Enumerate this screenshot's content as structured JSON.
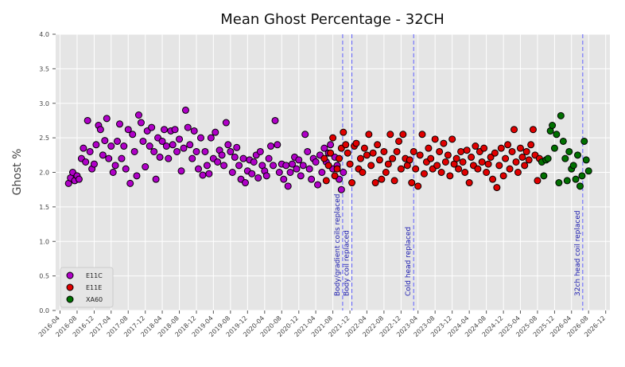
{
  "chart_data": {
    "type": "scatter",
    "title": "Mean Ghost Percentage - 32CH",
    "ylabel": "Ghost %",
    "xlabel": "",
    "ylim": [
      0,
      4
    ],
    "xlim": [
      "2016-03-01",
      "2026-12-31"
    ],
    "grid": true,
    "legend_position": "bottom-left",
    "y_ticks": [
      "0.0",
      "0.5",
      "1.0",
      "1.5",
      "2.0",
      "2.5",
      "3.0",
      "3.5",
      "4.0"
    ],
    "x_ticks": [
      "2016-04",
      "2016-08",
      "2016-12",
      "2017-04",
      "2017-08",
      "2017-12",
      "2018-04",
      "2018-08",
      "2018-12",
      "2019-04",
      "2019-08",
      "2019-12",
      "2020-04",
      "2020-08",
      "2020-12",
      "2021-04",
      "2021-08",
      "2021-12",
      "2022-04",
      "2022-08",
      "2022-12",
      "2023-04",
      "2023-08",
      "2023-12",
      "2024-04",
      "2024-08",
      "2024-12",
      "2025-04",
      "2025-08",
      "2025-12",
      "2026-04",
      "2026-08",
      "2026-12"
    ],
    "annotations": [
      {
        "date": "2021-10-10",
        "label": "Body/gradient coils replaced"
      },
      {
        "date": "2021-12-15",
        "label": "Body coil replaced"
      },
      {
        "date": "2023-03-01",
        "label": "Cold head replaced"
      },
      {
        "date": "2026-06-20",
        "label": "32ch head coil replaced"
      }
    ],
    "series": [
      {
        "name": "E11C",
        "color": "#b000c8",
        "points": [
          [
            "2016-06-01",
            1.84
          ],
          [
            "2016-06-15",
            1.92
          ],
          [
            "2016-07-01",
            2.0
          ],
          [
            "2016-07-15",
            1.88
          ],
          [
            "2016-08-01",
            1.95
          ],
          [
            "2016-08-15",
            1.9
          ],
          [
            "2016-09-01",
            2.2
          ],
          [
            "2016-09-15",
            2.35
          ],
          [
            "2016-10-01",
            2.15
          ],
          [
            "2016-10-15",
            2.75
          ],
          [
            "2016-11-01",
            2.3
          ],
          [
            "2016-11-15",
            2.05
          ],
          [
            "2016-12-01",
            2.12
          ],
          [
            "2016-12-15",
            2.4
          ],
          [
            "2017-01-01",
            2.68
          ],
          [
            "2017-01-15",
            2.62
          ],
          [
            "2017-02-01",
            2.25
          ],
          [
            "2017-02-15",
            2.46
          ],
          [
            "2017-03-01",
            2.78
          ],
          [
            "2017-03-15",
            2.2
          ],
          [
            "2017-04-01",
            2.38
          ],
          [
            "2017-04-15",
            2.0
          ],
          [
            "2017-05-01",
            2.1
          ],
          [
            "2017-05-15",
            2.45
          ],
          [
            "2017-06-01",
            2.7
          ],
          [
            "2017-06-15",
            2.2
          ],
          [
            "2017-07-01",
            2.38
          ],
          [
            "2017-07-15",
            2.05
          ],
          [
            "2017-08-01",
            2.62
          ],
          [
            "2017-08-15",
            1.84
          ],
          [
            "2017-09-01",
            2.55
          ],
          [
            "2017-09-15",
            2.3
          ],
          [
            "2017-10-01",
            1.95
          ],
          [
            "2017-10-15",
            2.83
          ],
          [
            "2017-11-01",
            2.72
          ],
          [
            "2017-11-15",
            2.45
          ],
          [
            "2017-12-01",
            2.08
          ],
          [
            "2017-12-15",
            2.6
          ],
          [
            "2018-01-01",
            2.38
          ],
          [
            "2018-01-15",
            2.65
          ],
          [
            "2018-02-01",
            2.3
          ],
          [
            "2018-02-15",
            1.9
          ],
          [
            "2018-03-01",
            2.5
          ],
          [
            "2018-03-15",
            2.22
          ],
          [
            "2018-04-01",
            2.45
          ],
          [
            "2018-04-15",
            2.62
          ],
          [
            "2018-05-01",
            2.38
          ],
          [
            "2018-05-15",
            2.2
          ],
          [
            "2018-06-01",
            2.6
          ],
          [
            "2018-06-15",
            2.4
          ],
          [
            "2018-07-01",
            2.62
          ],
          [
            "2018-07-15",
            2.3
          ],
          [
            "2018-08-01",
            2.48
          ],
          [
            "2018-08-15",
            2.02
          ],
          [
            "2018-09-01",
            2.35
          ],
          [
            "2018-09-15",
            2.9
          ],
          [
            "2018-10-01",
            2.65
          ],
          [
            "2018-10-15",
            2.4
          ],
          [
            "2018-11-01",
            2.2
          ],
          [
            "2018-11-15",
            2.6
          ],
          [
            "2018-12-01",
            2.3
          ],
          [
            "2018-12-15",
            2.05
          ],
          [
            "2019-01-01",
            2.5
          ],
          [
            "2019-01-15",
            1.96
          ],
          [
            "2019-02-01",
            2.3
          ],
          [
            "2019-02-15",
            2.1
          ],
          [
            "2019-03-01",
            1.98
          ],
          [
            "2019-03-15",
            2.5
          ],
          [
            "2019-04-01",
            2.2
          ],
          [
            "2019-04-15",
            2.58
          ],
          [
            "2019-05-01",
            2.15
          ],
          [
            "2019-05-15",
            2.32
          ],
          [
            "2019-06-01",
            2.25
          ],
          [
            "2019-06-15",
            2.1
          ],
          [
            "2019-07-01",
            2.72
          ],
          [
            "2019-07-15",
            2.4
          ],
          [
            "2019-08-01",
            2.3
          ],
          [
            "2019-08-15",
            2.0
          ],
          [
            "2019-09-01",
            2.22
          ],
          [
            "2019-09-15",
            2.36
          ],
          [
            "2019-10-01",
            2.1
          ],
          [
            "2019-10-15",
            1.9
          ],
          [
            "2019-11-01",
            2.2
          ],
          [
            "2019-11-15",
            1.85
          ],
          [
            "2019-12-01",
            2.02
          ],
          [
            "2019-12-15",
            2.18
          ],
          [
            "2020-01-01",
            1.98
          ],
          [
            "2020-01-15",
            2.15
          ],
          [
            "2020-02-01",
            2.25
          ],
          [
            "2020-02-15",
            1.92
          ],
          [
            "2020-03-01",
            2.3
          ],
          [
            "2020-03-15",
            2.1
          ],
          [
            "2020-04-01",
            2.02
          ],
          [
            "2020-04-15",
            1.95
          ],
          [
            "2020-05-01",
            2.2
          ],
          [
            "2020-05-15",
            2.38
          ],
          [
            "2020-06-01",
            2.1
          ],
          [
            "2020-06-15",
            2.75
          ],
          [
            "2020-07-01",
            2.4
          ],
          [
            "2020-07-15",
            2.0
          ],
          [
            "2020-08-01",
            2.12
          ],
          [
            "2020-08-15",
            1.9
          ],
          [
            "2020-09-01",
            2.1
          ],
          [
            "2020-09-15",
            1.8
          ],
          [
            "2020-10-01",
            2.0
          ],
          [
            "2020-10-15",
            2.12
          ],
          [
            "2020-11-01",
            2.22
          ],
          [
            "2020-11-15",
            2.05
          ],
          [
            "2020-12-01",
            2.18
          ],
          [
            "2020-12-15",
            1.95
          ],
          [
            "2021-01-01",
            2.1
          ],
          [
            "2021-01-15",
            2.55
          ],
          [
            "2021-02-01",
            2.3
          ],
          [
            "2021-02-15",
            2.05
          ],
          [
            "2021-03-01",
            1.9
          ],
          [
            "2021-03-15",
            2.2
          ],
          [
            "2021-04-01",
            2.15
          ],
          [
            "2021-04-15",
            1.82
          ],
          [
            "2021-05-01",
            2.25
          ],
          [
            "2021-05-15",
            2.0
          ],
          [
            "2021-06-01",
            2.35
          ],
          [
            "2021-06-15",
            2.15
          ],
          [
            "2021-07-01",
            2.28
          ],
          [
            "2021-07-15",
            2.4
          ],
          [
            "2021-08-01",
            2.05
          ],
          [
            "2021-08-15",
            2.22
          ],
          [
            "2021-09-01",
            2.1
          ],
          [
            "2021-09-15",
            1.9
          ],
          [
            "2021-10-01",
            1.75
          ],
          [
            "2021-10-15",
            2.0
          ]
        ]
      },
      {
        "name": "E11E",
        "color": "#e00000",
        "points": [
          [
            "2021-06-01",
            2.2
          ],
          [
            "2021-06-15",
            1.88
          ],
          [
            "2021-07-01",
            2.1
          ],
          [
            "2021-07-15",
            2.28
          ],
          [
            "2021-08-01",
            2.5
          ],
          [
            "2021-08-15",
            1.95
          ],
          [
            "2021-09-01",
            2.05
          ],
          [
            "2021-09-15",
            2.2
          ],
          [
            "2021-10-01",
            2.35
          ],
          [
            "2021-10-15",
            2.58
          ],
          [
            "2021-11-01",
            2.4
          ],
          [
            "2021-11-15",
            2.28
          ],
          [
            "2021-12-01",
            2.12
          ],
          [
            "2021-12-15",
            1.85
          ],
          [
            "2022-01-01",
            2.38
          ],
          [
            "2022-01-15",
            2.42
          ],
          [
            "2022-02-01",
            2.05
          ],
          [
            "2022-02-15",
            2.2
          ],
          [
            "2022-03-01",
            2.0
          ],
          [
            "2022-03-15",
            2.35
          ],
          [
            "2022-04-01",
            2.25
          ],
          [
            "2022-04-15",
            2.55
          ],
          [
            "2022-05-01",
            2.1
          ],
          [
            "2022-05-15",
            2.28
          ],
          [
            "2022-06-01",
            1.85
          ],
          [
            "2022-06-15",
            2.4
          ],
          [
            "2022-07-01",
            2.18
          ],
          [
            "2022-07-15",
            1.9
          ],
          [
            "2022-08-01",
            2.3
          ],
          [
            "2022-08-15",
            2.0
          ],
          [
            "2022-09-01",
            2.12
          ],
          [
            "2022-09-15",
            2.55
          ],
          [
            "2022-10-01",
            2.2
          ],
          [
            "2022-10-15",
            1.88
          ],
          [
            "2022-11-01",
            2.3
          ],
          [
            "2022-11-15",
            2.45
          ],
          [
            "2022-12-01",
            2.05
          ],
          [
            "2022-12-15",
            2.55
          ],
          [
            "2023-01-01",
            2.2
          ],
          [
            "2023-01-15",
            2.1
          ],
          [
            "2023-02-01",
            2.18
          ],
          [
            "2023-02-15",
            1.85
          ],
          [
            "2023-03-01",
            2.3
          ],
          [
            "2023-03-15",
            2.05
          ],
          [
            "2023-04-01",
            1.8
          ],
          [
            "2023-04-15",
            2.25
          ],
          [
            "2023-05-01",
            2.55
          ],
          [
            "2023-05-15",
            1.98
          ],
          [
            "2023-06-01",
            2.15
          ],
          [
            "2023-06-15",
            2.35
          ],
          [
            "2023-07-01",
            2.2
          ],
          [
            "2023-07-15",
            2.05
          ],
          [
            "2023-08-01",
            2.48
          ],
          [
            "2023-08-15",
            2.1
          ],
          [
            "2023-09-01",
            2.3
          ],
          [
            "2023-09-15",
            2.0
          ],
          [
            "2023-10-01",
            2.42
          ],
          [
            "2023-10-15",
            2.15
          ],
          [
            "2023-11-01",
            2.25
          ],
          [
            "2023-11-15",
            1.95
          ],
          [
            "2023-12-01",
            2.48
          ],
          [
            "2023-12-15",
            2.12
          ],
          [
            "2024-01-01",
            2.2
          ],
          [
            "2024-01-15",
            2.05
          ],
          [
            "2024-02-01",
            2.3
          ],
          [
            "2024-02-15",
            2.15
          ],
          [
            "2024-03-01",
            2.0
          ],
          [
            "2024-03-15",
            2.32
          ],
          [
            "2024-04-01",
            1.85
          ],
          [
            "2024-04-15",
            2.22
          ],
          [
            "2024-05-01",
            2.1
          ],
          [
            "2024-05-15",
            2.38
          ],
          [
            "2024-06-01",
            2.05
          ],
          [
            "2024-06-15",
            2.3
          ],
          [
            "2024-07-01",
            2.15
          ],
          [
            "2024-07-15",
            2.35
          ],
          [
            "2024-08-01",
            2.0
          ],
          [
            "2024-08-15",
            2.12
          ],
          [
            "2024-09-01",
            2.22
          ],
          [
            "2024-09-15",
            1.9
          ],
          [
            "2024-10-01",
            2.28
          ],
          [
            "2024-10-15",
            1.78
          ],
          [
            "2024-11-01",
            2.1
          ],
          [
            "2024-11-15",
            2.35
          ],
          [
            "2024-12-01",
            1.95
          ],
          [
            "2024-12-15",
            2.2
          ],
          [
            "2025-01-01",
            2.4
          ],
          [
            "2025-01-15",
            2.05
          ],
          [
            "2025-02-01",
            2.3
          ],
          [
            "2025-02-15",
            2.62
          ],
          [
            "2025-03-01",
            2.15
          ],
          [
            "2025-03-15",
            2.0
          ],
          [
            "2025-04-01",
            2.35
          ],
          [
            "2025-04-15",
            2.22
          ],
          [
            "2025-05-01",
            2.1
          ],
          [
            "2025-05-15",
            2.3
          ],
          [
            "2025-06-01",
            2.18
          ],
          [
            "2025-06-15",
            2.4
          ],
          [
            "2025-07-01",
            2.62
          ],
          [
            "2025-07-15",
            2.25
          ],
          [
            "2025-08-01",
            1.88
          ],
          [
            "2025-08-15",
            2.2
          ]
        ]
      },
      {
        "name": "XA60",
        "color": "#007000",
        "points": [
          [
            "2025-09-01",
            2.15
          ],
          [
            "2025-09-15",
            1.95
          ],
          [
            "2025-10-01",
            2.18
          ],
          [
            "2025-10-15",
            2.2
          ],
          [
            "2025-11-01",
            2.6
          ],
          [
            "2025-11-15",
            2.68
          ],
          [
            "2025-12-01",
            2.35
          ],
          [
            "2025-12-15",
            2.55
          ],
          [
            "2026-01-01",
            1.85
          ],
          [
            "2026-01-15",
            2.82
          ],
          [
            "2026-02-01",
            2.45
          ],
          [
            "2026-02-15",
            2.2
          ],
          [
            "2026-03-01",
            1.88
          ],
          [
            "2026-03-15",
            2.3
          ],
          [
            "2026-04-01",
            2.05
          ],
          [
            "2026-04-15",
            2.1
          ],
          [
            "2026-05-01",
            1.9
          ],
          [
            "2026-05-15",
            2.25
          ],
          [
            "2026-06-01",
            1.8
          ],
          [
            "2026-06-15",
            1.95
          ],
          [
            "2026-07-01",
            2.45
          ],
          [
            "2026-07-15",
            2.18
          ],
          [
            "2026-08-01",
            2.02
          ]
        ]
      }
    ]
  }
}
